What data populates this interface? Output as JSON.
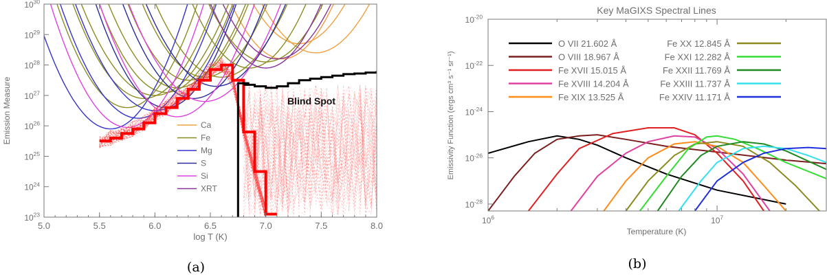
{
  "panel_a": {
    "caption": "(a)",
    "annotation": "Blind Spot",
    "xlabel": "log T (K)",
    "ylabel": "Emission Measure",
    "xticks": [
      "5.0",
      "5.5",
      "6.0",
      "6.5",
      "7.0",
      "7.5",
      "8.0"
    ],
    "yticks": [
      {
        "base": "10",
        "exp": "23"
      },
      {
        "base": "10",
        "exp": "24"
      },
      {
        "base": "10",
        "exp": "25"
      },
      {
        "base": "10",
        "exp": "26"
      },
      {
        "base": "10",
        "exp": "27"
      },
      {
        "base": "10",
        "exp": "28"
      },
      {
        "base": "10",
        "exp": "29"
      },
      {
        "base": "10",
        "exp": "30"
      }
    ],
    "legend": [
      {
        "label": "Ca",
        "color": "#f0a040"
      },
      {
        "label": "Fe",
        "color": "#8c8c22"
      },
      {
        "label": "Mg",
        "color": "#3333cc"
      },
      {
        "label": "S",
        "color": "#2a2a9a"
      },
      {
        "label": "Si",
        "color": "#e040e0"
      },
      {
        "label": "XRT",
        "color": "#883399"
      }
    ]
  },
  "panel_b": {
    "caption": "(b)",
    "title": "Key MaGIXS Spectral Lines",
    "xlabel": "Temperature (K)",
    "ylabel": "Emissivity Function (ergs cm³ s⁻¹ sr⁻¹)",
    "xticks": [
      {
        "base": "10",
        "exp": "6"
      },
      {
        "base": "10",
        "exp": "7"
      }
    ],
    "yticks": [
      {
        "base": "10",
        "exp": "-28"
      },
      {
        "base": "10",
        "exp": "-26"
      },
      {
        "base": "10",
        "exp": "-24"
      },
      {
        "base": "10",
        "exp": "-22"
      },
      {
        "base": "10",
        "exp": "-20"
      }
    ]
  },
  "chart_data": [
    {
      "type": "line",
      "xlabel": "log T (K)",
      "ylabel": "Emission Measure",
      "xlim": [
        5.0,
        8.0
      ],
      "ylim_log10": [
        23,
        30
      ],
      "y_scale": "log",
      "legend_position": "center-left",
      "annotations": [
        "Blind Spot"
      ],
      "series": [
        {
          "name": "Ca",
          "color": "#f0a040",
          "loci": [
            [
              7.15,
              28.2
            ],
            [
              7.3,
              28.7
            ],
            [
              7.45,
              28.4
            ]
          ]
        },
        {
          "name": "Fe",
          "color": "#8c8c22",
          "loci": [
            [
              5.75,
              26.6
            ],
            [
              5.9,
              26.9
            ],
            [
              6.0,
              27.0
            ],
            [
              6.1,
              27.1
            ],
            [
              6.2,
              27.25
            ],
            [
              6.3,
              27.5
            ],
            [
              6.45,
              27.6
            ],
            [
              6.6,
              27.6
            ],
            [
              6.85,
              27.9
            ],
            [
              7.0,
              28.1
            ]
          ]
        },
        {
          "name": "Mg",
          "color": "#3333cc",
          "loci": [
            [
              5.6,
              25.9
            ],
            [
              5.85,
              26.25
            ],
            [
              6.0,
              26.5
            ]
          ]
        },
        {
          "name": "S",
          "color": "#2a2a9a",
          "loci": [
            [
              6.1,
              26.6
            ],
            [
              6.35,
              26.9
            ],
            [
              6.55,
              27.3
            ]
          ]
        },
        {
          "name": "Si",
          "color": "#e040e0",
          "loci": [
            [
              5.75,
              25.95
            ],
            [
              6.2,
              26.3
            ],
            [
              6.45,
              26.8
            ]
          ]
        },
        {
          "name": "XRT",
          "color": "#883399",
          "loci": [
            [
              7.0,
              27.9
            ],
            [
              7.1,
              28.2
            ]
          ]
        }
      ],
      "em_lower_bound": {
        "x": [
          6.75,
          6.8,
          6.9,
          7.0,
          7.1,
          7.2,
          7.3,
          7.4,
          7.5,
          7.6,
          7.7,
          7.8,
          7.9,
          8.0
        ],
        "y_log10": [
          27.4,
          27.35,
          27.3,
          27.25,
          27.3,
          27.4,
          27.5,
          27.55,
          27.6,
          27.65,
          27.7,
          27.72,
          27.75,
          27.8
        ]
      },
      "dem_solution": {
        "x": [
          5.5,
          5.6,
          5.7,
          5.8,
          5.9,
          6.0,
          6.1,
          6.2,
          6.3,
          6.4,
          6.5,
          6.6,
          6.7,
          6.8,
          6.9,
          7.0
        ],
        "y_log10": [
          25.5,
          25.6,
          25.75,
          25.9,
          26.1,
          26.4,
          26.6,
          26.9,
          27.2,
          27.5,
          27.85,
          28.0,
          27.5,
          25.8,
          24.5,
          23.1
        ]
      }
    },
    {
      "type": "line",
      "title": "Key MaGIXS Spectral Lines",
      "xlabel": "Temperature (K)",
      "ylabel": "Emissivity Function (ergs cm³ s⁻¹ sr⁻¹)",
      "x_scale": "log",
      "y_scale": "log",
      "xlim": [
        1000000,
        30000000
      ],
      "ylim_log10": [
        -28.3,
        -20
      ],
      "series": [
        {
          "name": "O VII 21.602 Å",
          "color": "#000000",
          "x": [
            1000000.0,
            1500000.0,
            2000000.0,
            2500000.0,
            3000000.0,
            4000000.0,
            6000000.0,
            10000000.0,
            20000000.0
          ],
          "y_log10": [
            -25.8,
            -25.3,
            -25.05,
            -25.2,
            -25.45,
            -26.0,
            -26.7,
            -27.4,
            -28.0
          ]
        },
        {
          "name": "O VIII 18.967 Å",
          "color": "#7a1e1e",
          "x": [
            1000000.0,
            1300000.0,
            1600000.0,
            2000000.0,
            2500000.0,
            3000000.0,
            4000000.0,
            6000000.0,
            10000000.0,
            20000000.0,
            30000000.0
          ],
          "y_log10": [
            -28.3,
            -26.8,
            -25.8,
            -25.2,
            -25.05,
            -25.0,
            -25.2,
            -25.5,
            -25.75,
            -26.1,
            -26.25
          ]
        },
        {
          "name": "Fe XVII 15.015 Å",
          "color": "#e02020",
          "x": [
            1500000.0,
            2000000.0,
            2500000.0,
            3500000.0,
            5000000.0,
            6500000.0,
            8000000.0,
            10000000.0,
            13000000.0,
            16000000.0
          ],
          "y_log10": [
            -28.3,
            -26.7,
            -25.6,
            -24.95,
            -24.7,
            -24.7,
            -25.0,
            -25.8,
            -27.0,
            -28.3
          ]
        },
        {
          "name": "Fe XVIII 14.204 Å",
          "color": "#e040a0",
          "x": [
            2300000.0,
            3000000.0,
            4000000.0,
            5000000.0,
            6500000.0,
            8000000.0,
            10000000.0,
            13000000.0,
            17000000.0
          ],
          "y_log10": [
            -28.3,
            -26.8,
            -25.8,
            -25.3,
            -25.05,
            -25.1,
            -25.6,
            -26.7,
            -28.3
          ]
        },
        {
          "name": "Fe XIX 13.525 Å",
          "color": "#ff8c1a",
          "x": [
            3200000.0,
            4000000.0,
            5000000.0,
            6500000.0,
            8000000.0,
            10000000.0,
            13000000.0,
            16000000.0,
            20000000.0
          ],
          "y_log10": [
            -28.3,
            -27.0,
            -26.0,
            -25.4,
            -25.3,
            -25.5,
            -26.2,
            -27.2,
            -28.3
          ]
        },
        {
          "name": "Fe XX 12.845 Å",
          "color": "#8a8a1e",
          "x": [
            4000000.0,
            5000000.0,
            6500000.0,
            8000000.0,
            10000000.0,
            13000000.0,
            17000000.0,
            22000000.0,
            28000000.0
          ],
          "y_log10": [
            -28.3,
            -27.0,
            -25.9,
            -25.4,
            -25.3,
            -25.5,
            -26.2,
            -27.2,
            -28.3
          ]
        },
        {
          "name": "Fe XXI 12.282 Å",
          "color": "#33dd33",
          "x": [
            4600000.0,
            6000000.0,
            7500000.0,
            9000000.0,
            10000000.0,
            12000000.0,
            15000000.0,
            20000000.0,
            30000000.0
          ],
          "y_log10": [
            -28.3,
            -26.8,
            -25.6,
            -25.1,
            -25.05,
            -25.2,
            -25.6,
            -26.2,
            -26.9
          ]
        },
        {
          "name": "Fe XXII 11.769 Å",
          "color": "#1f8a1f",
          "x": [
            5500000.0,
            7000000.0,
            8500000.0,
            10000000.0,
            13000000.0,
            16000000.0,
            20000000.0,
            30000000.0
          ],
          "y_log10": [
            -28.3,
            -26.8,
            -25.9,
            -25.5,
            -25.3,
            -25.4,
            -25.7,
            -26.5
          ]
        },
        {
          "name": "Fe XXIII 11.737 Å",
          "color": "#33e0ee",
          "x": [
            6800000.0,
            8500000.0,
            10000000.0,
            13000000.0,
            16000000.0,
            20000000.0,
            25000000.0,
            30000000.0
          ],
          "y_log10": [
            -28.3,
            -27.0,
            -26.2,
            -25.6,
            -25.5,
            -25.6,
            -25.9,
            -26.2
          ]
        },
        {
          "name": "Fe XXIV 11.171 Å",
          "color": "#1f2fdd",
          "x": [
            8000000.0,
            10000000.0,
            13000000.0,
            16000000.0,
            20000000.0,
            25000000.0,
            30000000.0
          ],
          "y_log10": [
            -28.3,
            -27.0,
            -26.2,
            -25.8,
            -25.6,
            -25.55,
            -25.6
          ]
        }
      ],
      "legend_position": "top"
    }
  ]
}
